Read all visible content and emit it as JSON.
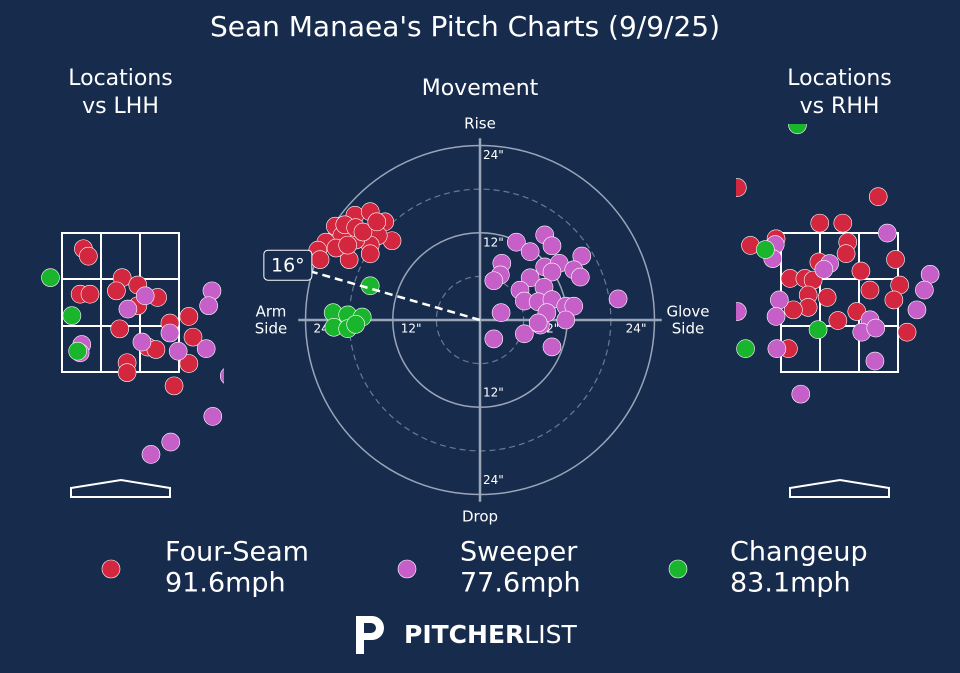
{
  "title": "Sean Manaea's Pitch Charts (9/9/25)",
  "pitches": [
    {
      "name": "Four-Seam",
      "velocity": "91.6mph",
      "color": "#d3263f"
    },
    {
      "name": "Sweeper",
      "velocity": "77.6mph",
      "color": "#c65fc8"
    },
    {
      "name": "Changeup",
      "velocity": "83.1mph",
      "color": "#19b52c"
    }
  ],
  "logo": [
    "PITCHER",
    "LIST"
  ],
  "chart_data": [
    {
      "type": "location",
      "title": [
        "Locations",
        "vs LHH"
      ],
      "xlim": [
        -1.25,
        1.25
      ],
      "ylim": [
        0,
        4.6
      ],
      "series": [
        {
          "x": [
            -0.45,
            -0.39,
            0.02,
            0.21,
            -0.49,
            -0.37,
            -0.05,
            0.45,
            0.21,
            -0.01,
            0.6,
            0.83,
            0.88,
            0.33,
            0.43,
            0.08,
            0.08,
            0.83,
            0.65
          ],
          "values": [
            3.09,
            3.0,
            2.74,
            2.65,
            2.54,
            2.54,
            2.58,
            2.5,
            2.4,
            2.12,
            2.19,
            2.27,
            2.02,
            1.9,
            1.87,
            1.71,
            1.59,
            1.7,
            1.43
          ]
        },
        {
          "x": [
            0.3,
            0.09,
            0.6,
            0.26,
            -0.47,
            -0.49,
            0.7,
            1.04,
            1.11,
            1.07,
            1.32,
            1.12,
            0.61,
            0.37
          ],
          "values": [
            2.52,
            2.36,
            2.07,
            1.96,
            1.93,
            1.83,
            1.85,
            1.88,
            2.58,
            2.4,
            1.55,
            1.06,
            0.75,
            0.6
          ]
        },
        {
          "x": [
            -0.85,
            -0.59,
            -0.52
          ],
          "values": [
            2.74,
            2.28,
            1.85
          ]
        }
      ]
    },
    {
      "type": "movement",
      "title": "Movement",
      "xlim": [
        -25,
        25
      ],
      "ylim": [
        -25,
        25
      ],
      "rticks": [
        {
          "value": 12,
          "label": "12\""
        },
        {
          "value": 24,
          "label": "24\""
        }
      ],
      "axis_labels": {
        "top": "Rise",
        "bottom": "Drop",
        "left": [
          "Arm",
          "Side"
        ],
        "right": [
          "Glove",
          "Side"
        ]
      },
      "arm_angle": {
        "value": 16,
        "label": "16°"
      },
      "series": [
        {
          "x": [
            -19.9,
            -17.2,
            -15.1,
            -13.1,
            -12.1,
            -14.0,
            -15.1,
            -17.1,
            -19.0,
            -21.2,
            -22.3,
            -22.0,
            -18.0,
            -15.1,
            -19.8,
            -18.6,
            -17.1,
            -16.1,
            -14.2,
            -18.2
          ],
          "values": [
            12.9,
            14.4,
            14.9,
            13.5,
            10.9,
            11.6,
            10.3,
            11.0,
            11.6,
            10.7,
            9.6,
            8.3,
            8.3,
            9.1,
            9.9,
            13.1,
            12.7,
            12.1,
            13.5,
            10.3
          ]
        },
        {
          "x": [
            5.0,
            8.9,
            9.9,
            14.0,
            6.9,
            3.0,
            2.8,
            1.9,
            8.9,
            10.9,
            12.9,
            13.8,
            9.9,
            6.9,
            8.8,
            5.5,
            6.1,
            8.0,
            9.9,
            11.8,
            12.9,
            19.0,
            2.9,
            8.3,
            9.2,
            11.8,
            6.1,
            8.0,
            1.9,
            9.9
          ],
          "values": [
            10.7,
            11.7,
            10.2,
            8.8,
            9.4,
            7.8,
            6.2,
            5.4,
            7.3,
            7.8,
            6.9,
            5.9,
            6.6,
            5.8,
            4.5,
            4.1,
            2.6,
            2.5,
            2.8,
            1.9,
            1.9,
            2.9,
            1.0,
            -0.7,
            1.0,
            0.0,
            -1.9,
            -0.4,
            -2.6,
            -3.7
          ]
        },
        {
          "x": [
            -15.1,
            -20.2,
            -18.2,
            -16.2,
            -20.1,
            -18.2,
            -17.1
          ],
          "values": [
            4.7,
            1.0,
            0.7,
            0.4,
            -1.0,
            -1.2,
            -0.6
          ]
        }
      ]
    },
    {
      "type": "location",
      "title": [
        "Locations",
        "vs RHH"
      ],
      "xlim": [
        -1.25,
        1.25
      ],
      "ylim": [
        0,
        4.6
      ],
      "series": [
        {
          "x": [
            -1.24,
            -1.08,
            -0.77,
            -0.24,
            0.04,
            0.47,
            0.1,
            0.08,
            -0.25,
            -0.6,
            -0.42,
            -0.32,
            0.26,
            0.68,
            -0.38,
            -0.15,
            -0.38,
            -0.56,
            0.37,
            0.73,
            0.66,
            -0.02,
            0.21,
            0.82,
            -0.62
          ],
          "values": [
            3.83,
            3.13,
            3.21,
            3.4,
            3.4,
            3.72,
            3.17,
            3.03,
            2.93,
            2.73,
            2.73,
            2.71,
            2.82,
            2.96,
            2.53,
            2.5,
            2.38,
            2.35,
            2.59,
            2.65,
            2.47,
            2.22,
            2.33,
            2.08,
            1.88
          ]
        },
        {
          "x": [
            0.58,
            -0.78,
            -0.81,
            -0.12,
            -0.19,
            -0.73,
            -0.77,
            -0.76,
            0.37,
            0.27,
            0.44,
            0.43,
            1.1,
            1.03,
            0.94,
            -1.24,
            -0.47
          ],
          "values": [
            3.28,
            3.14,
            2.97,
            2.91,
            2.84,
            2.47,
            2.27,
            1.88,
            2.23,
            2.08,
            2.13,
            1.73,
            2.78,
            2.59,
            2.35,
            2.33,
            1.33
          ]
        },
        {
          "x": [
            -0.51,
            -0.9,
            -0.26,
            -1.14
          ],
          "values": [
            4.59,
            3.08,
            2.11,
            1.88
          ]
        }
      ]
    }
  ]
}
